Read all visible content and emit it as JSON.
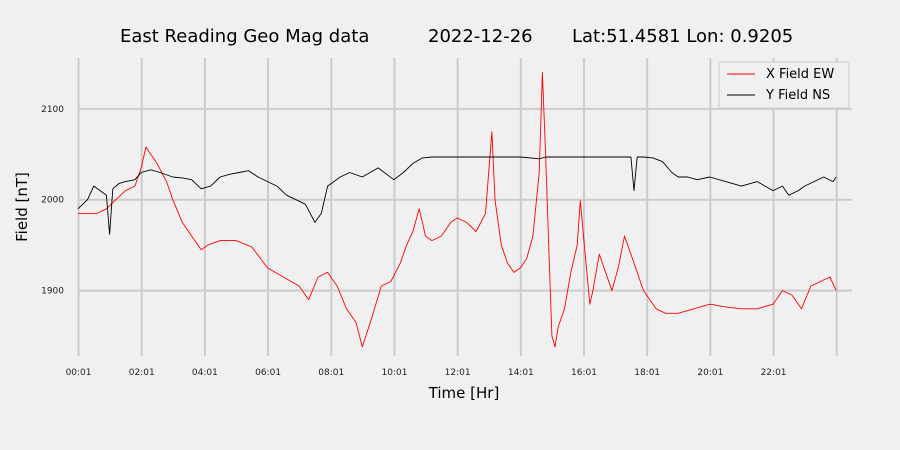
{
  "chart_data": {
    "type": "line",
    "title": {
      "name": "East Reading Geo Mag data",
      "date": "2022-12-26",
      "location": "Lat:51.4581  Lon: 0.9205"
    },
    "xlabel": "Time  [Hr]",
    "ylabel": "Field  [nT]",
    "xlim": [
      0.0,
      24.5
    ],
    "ylim": [
      1828,
      2156
    ],
    "x_ticks": [
      {
        "label": "00:01",
        "value": 0.017
      },
      {
        "label": "02:01",
        "value": 2.017
      },
      {
        "label": "04:01",
        "value": 4.017
      },
      {
        "label": "06:01",
        "value": 6.017
      },
      {
        "label": "08:01",
        "value": 8.017
      },
      {
        "label": "10:01",
        "value": 10.017
      },
      {
        "label": "12:01",
        "value": 12.017
      },
      {
        "label": "14:01",
        "value": 14.017
      },
      {
        "label": "16:01",
        "value": 16.017
      },
      {
        "label": "18:01",
        "value": 18.017
      },
      {
        "label": "20:01",
        "value": 20.017
      },
      {
        "label": "22:01",
        "value": 22.017
      }
    ],
    "y_ticks": [
      {
        "label": "1900",
        "value": 1900
      },
      {
        "label": "2000",
        "value": 2000
      },
      {
        "label": "2100",
        "value": 2100
      }
    ],
    "grid": true,
    "legend_position": "top-right",
    "series": [
      {
        "name": "X Field EW",
        "color": "#ff0000",
        "x": [
          0.0,
          0.3,
          0.6,
          0.9,
          1.2,
          1.5,
          1.8,
          2.0,
          2.15,
          2.3,
          2.5,
          2.8,
          3.0,
          3.3,
          3.6,
          3.9,
          4.1,
          4.5,
          5.0,
          5.5,
          6.0,
          6.5,
          7.0,
          7.3,
          7.6,
          7.9,
          8.2,
          8.5,
          8.8,
          9.0,
          9.3,
          9.6,
          9.9,
          10.2,
          10.4,
          10.6,
          10.8,
          11.0,
          11.2,
          11.5,
          11.8,
          12.0,
          12.3,
          12.6,
          12.9,
          13.0,
          13.1,
          13.2,
          13.4,
          13.6,
          13.8,
          14.0,
          14.2,
          14.4,
          14.6,
          14.7,
          14.8,
          14.9,
          15.0,
          15.1,
          15.2,
          15.4,
          15.6,
          15.8,
          15.9,
          16.0,
          16.2,
          16.3,
          16.5,
          16.7,
          16.9,
          17.1,
          17.3,
          17.5,
          17.7,
          17.9,
          18.1,
          18.3,
          18.6,
          19.0,
          19.5,
          20.0,
          20.5,
          21.0,
          21.5,
          22.0,
          22.3,
          22.6,
          22.9,
          23.2,
          23.5,
          23.8,
          24.0
        ],
        "y": [
          1985,
          1985,
          1985,
          1990,
          2000,
          2010,
          2015,
          2035,
          2058,
          2050,
          2040,
          2020,
          2000,
          1975,
          1960,
          1945,
          1950,
          1955,
          1955,
          1948,
          1925,
          1915,
          1905,
          1890,
          1915,
          1920,
          1905,
          1880,
          1865,
          1838,
          1870,
          1905,
          1910,
          1930,
          1950,
          1965,
          1990,
          1960,
          1955,
          1960,
          1975,
          1980,
          1975,
          1965,
          1985,
          2030,
          2075,
          2000,
          1950,
          1930,
          1920,
          1925,
          1935,
          1960,
          2030,
          2140,
          2050,
          1950,
          1850,
          1838,
          1860,
          1880,
          1920,
          1950,
          1999,
          1960,
          1885,
          1900,
          1940,
          1920,
          1900,
          1925,
          1960,
          1940,
          1920,
          1900,
          1890,
          1880,
          1875,
          1875,
          1880,
          1885,
          1882,
          1880,
          1880,
          1885,
          1900,
          1895,
          1880,
          1905,
          1910,
          1915,
          1900
        ]
      },
      {
        "name": "Y Field NS",
        "color": "#000000",
        "x": [
          0.0,
          0.3,
          0.5,
          0.7,
          0.9,
          1.0,
          1.1,
          1.3,
          1.5,
          1.8,
          2.0,
          2.3,
          2.6,
          3.0,
          3.3,
          3.6,
          3.9,
          4.2,
          4.5,
          4.8,
          5.1,
          5.4,
          5.7,
          6.0,
          6.3,
          6.6,
          6.9,
          7.2,
          7.5,
          7.7,
          7.9,
          8.1,
          8.3,
          8.6,
          9.0,
          9.5,
          10.0,
          10.3,
          10.6,
          10.9,
          11.2,
          11.5,
          12.0,
          13.0,
          14.0,
          14.6,
          14.8,
          15.0,
          15.5,
          16.0,
          16.5,
          17.0,
          17.5,
          17.6,
          17.7,
          17.9,
          18.2,
          18.5,
          18.8,
          19.0,
          19.3,
          19.6,
          20.0,
          20.5,
          21.0,
          21.5,
          22.0,
          22.3,
          22.5,
          22.8,
          23.0,
          23.3,
          23.6,
          23.9,
          24.0
        ],
        "y": [
          1990,
          2000,
          2015,
          2010,
          2005,
          1962,
          2012,
          2018,
          2020,
          2022,
          2030,
          2033,
          2030,
          2025,
          2024,
          2022,
          2012,
          2015,
          2025,
          2028,
          2030,
          2032,
          2025,
          2020,
          2015,
          2005,
          2000,
          1995,
          1975,
          1985,
          2015,
          2020,
          2025,
          2030,
          2025,
          2035,
          2022,
          2030,
          2040,
          2046,
          2047,
          2047,
          2047,
          2047,
          2047,
          2045,
          2047,
          2047,
          2047,
          2047,
          2047,
          2047,
          2047,
          2010,
          2047,
          2047,
          2046,
          2042,
          2030,
          2025,
          2025,
          2022,
          2025,
          2020,
          2015,
          2020,
          2010,
          2015,
          2005,
          2010,
          2015,
          2020,
          2025,
          2020,
          2025
        ]
      }
    ]
  }
}
